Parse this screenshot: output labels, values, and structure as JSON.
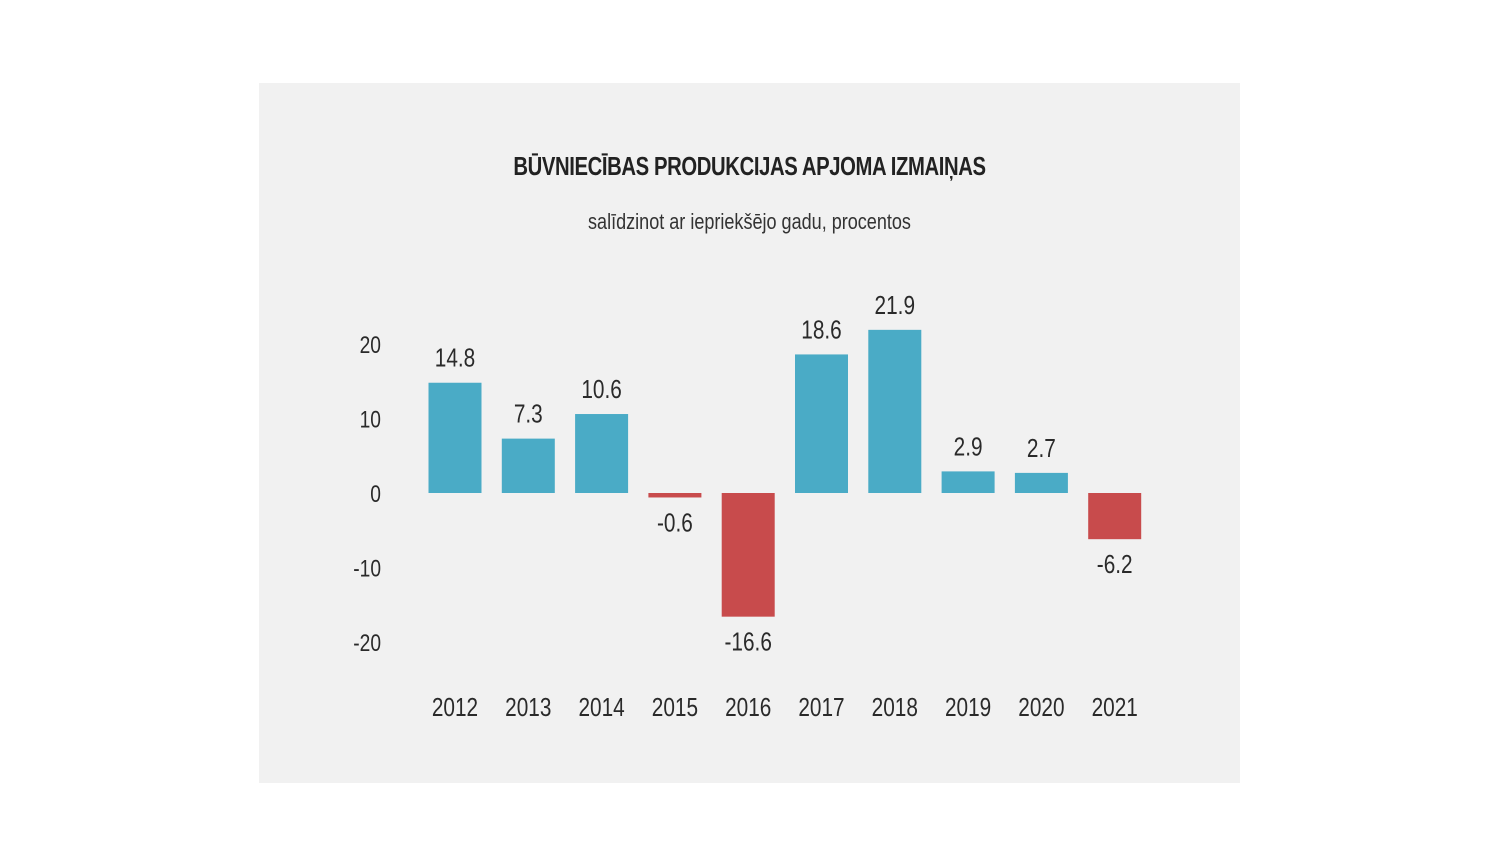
{
  "chart_data": {
    "type": "bar",
    "title": "BŪVNIECĪBAS PRODUKCIJAS APJOMA IZMAIŅAS",
    "subtitle": "salīdzinot ar iepriekšējo gadu, procentos",
    "categories": [
      "2012",
      "2013",
      "2014",
      "2015",
      "2016",
      "2017",
      "2018",
      "2019",
      "2020",
      "2021"
    ],
    "values": [
      14.8,
      7.3,
      10.6,
      -0.6,
      -16.6,
      18.6,
      21.9,
      2.9,
      2.7,
      -6.2
    ],
    "value_labels": [
      "14.8",
      "7.3",
      "10.6",
      "-0.6",
      "-16.6",
      "18.6",
      "21.9",
      "2.9",
      "2.7",
      "-6.2"
    ],
    "yticks": [
      20,
      10,
      0,
      -10,
      -20
    ],
    "ylim": [
      -20,
      20
    ],
    "grid": false,
    "colors": {
      "positive": "#4aabc6",
      "negative": "#c84b4c"
    }
  }
}
